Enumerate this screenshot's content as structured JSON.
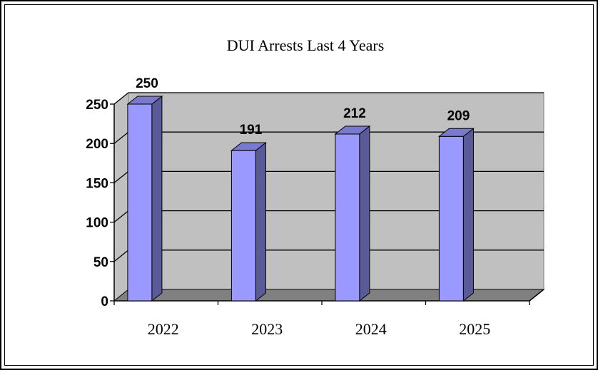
{
  "chart_data": {
    "type": "bar",
    "title": "DUI Arrests Last 4 Years",
    "categories": [
      "2022",
      "2023",
      "2024",
      "2025"
    ],
    "values": [
      250,
      191,
      212,
      209
    ],
    "data_labels": [
      "250",
      "191",
      "212",
      "209"
    ],
    "ylim": [
      0,
      250
    ],
    "yticks": [
      0,
      50,
      100,
      150,
      200,
      250
    ],
    "xlabel": "",
    "ylabel": "",
    "grid": true,
    "legend": "none",
    "style": "3d-column"
  },
  "colors": {
    "bar_front": "#9999ff",
    "bar_side": "#5a5a99",
    "bar_top": "#7a7acc",
    "plot_back": "#c0c0c0",
    "floor": "#808080"
  }
}
